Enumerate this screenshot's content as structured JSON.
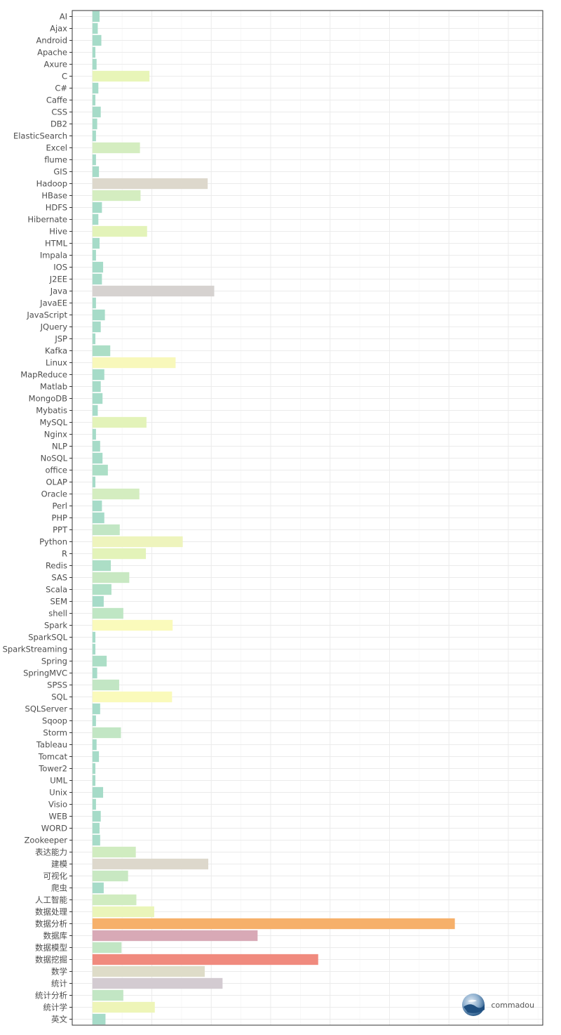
{
  "chart_data": {
    "type": "bar",
    "orientation": "horizontal",
    "title": "",
    "xlabel": "",
    "ylabel": "",
    "xlim": [
      -34,
      758
    ],
    "grid": true,
    "legend": "none",
    "categories": [
      "AI",
      "Ajax",
      "Android",
      "Apache",
      "Axure",
      "C",
      "C#",
      "Caffe",
      "CSS",
      "DB2",
      "ElasticSearch",
      "Excel",
      "flume",
      "GIS",
      "Hadoop",
      "HBase",
      "HDFS",
      "Hibernate",
      "Hive",
      "HTML",
      "Impala",
      "IOS",
      "J2EE",
      "Java",
      "JavaEE",
      "JavaScript",
      "JQuery",
      "JSP",
      "Kafka",
      "Linux",
      "MapReduce",
      "Matlab",
      "MongoDB",
      "Mybatis",
      "MySQL",
      "Nginx",
      "NLP",
      "NoSQL",
      "office",
      "OLAP",
      "Oracle",
      "Perl",
      "PHP",
      "PPT",
      "Python",
      "R",
      "Redis",
      "SAS",
      "Scala",
      "SEM",
      "shell",
      "Spark",
      "SparkSQL",
      "SparkStreaming",
      "Spring",
      "SpringMVC",
      "SPSS",
      "SQL",
      "SQLServer",
      "Sqoop",
      "Storm",
      "Tableau",
      "Tomcat",
      "Tower2",
      "UML",
      "Unix",
      "Visio",
      "WEB",
      "WORD",
      "Zookeeper",
      "表达能力",
      "建模",
      "可视化",
      "爬虫",
      "人工智能",
      "数据处理",
      "数据分析",
      "数据库",
      "数据模型",
      "数据挖掘",
      "数学",
      "统计",
      "统计分析",
      "统计学",
      "英文"
    ],
    "values": [
      12,
      9,
      15,
      5,
      7,
      96,
      10,
      5,
      14,
      8,
      6,
      80,
      6,
      11,
      194,
      81,
      16,
      10,
      92,
      12,
      6,
      18,
      16,
      205,
      6,
      21,
      14,
      5,
      30,
      140,
      20,
      14,
      17,
      9,
      91,
      6,
      13,
      17,
      26,
      5,
      79,
      16,
      20,
      46,
      152,
      90,
      31,
      62,
      32,
      19,
      52,
      135,
      5,
      5,
      24,
      8,
      45,
      134,
      13,
      6,
      48,
      7,
      11,
      5,
      5,
      18,
      6,
      14,
      12,
      13,
      73,
      195,
      60,
      19,
      74,
      104,
      610,
      278,
      49,
      380,
      189,
      219,
      52,
      105,
      22
    ],
    "colors": [
      "#a6dbc8",
      "#a6dbc8",
      "#a6dbc8",
      "#a6dbc8",
      "#a6dbc8",
      "#e8f5b8",
      "#a6dbc8",
      "#a6dbc8",
      "#a6dbc8",
      "#a6dbc8",
      "#a6dbc8",
      "#d4edc0",
      "#a6dbc8",
      "#a6dbc8",
      "#ddd8cc",
      "#d4edc0",
      "#a6dbc8",
      "#a6dbc8",
      "#e3f3b9",
      "#a6dbc8",
      "#a6dbc8",
      "#a6dbc8",
      "#a6dbc8",
      "#d6d2d0",
      "#a6dbc8",
      "#a6dbc8",
      "#a6dbc8",
      "#a6dbc8",
      "#acdec6",
      "#f8f8bb",
      "#a6dbc8",
      "#a6dbc8",
      "#a6dbc8",
      "#a6dbc8",
      "#e3f3b9",
      "#a6dbc8",
      "#a6dbc8",
      "#a6dbc8",
      "#acdec6",
      "#a6dbc8",
      "#d4edc0",
      "#a6dbc8",
      "#a6dbc8",
      "#c2e6c4",
      "#eef4bd",
      "#e3f3b9",
      "#acdec6",
      "#c8e8c2",
      "#b0e0c6",
      "#a6dbc8",
      "#bfe6c4",
      "#fafabb",
      "#a6dbc8",
      "#a6dbc8",
      "#acdec6",
      "#a6dbc8",
      "#c2e6c4",
      "#fafabb",
      "#a6dbc8",
      "#a6dbc8",
      "#c2e6c4",
      "#a6dbc8",
      "#a6dbc8",
      "#a6dbc8",
      "#a6dbc8",
      "#a6dbc8",
      "#a6dbc8",
      "#a6dbc8",
      "#a6dbc8",
      "#a6dbc8",
      "#d0ecc0",
      "#ddd8cc",
      "#c8e8c2",
      "#a6dbc8",
      "#d0ecc0",
      "#eaf5b9",
      "#f6b06a",
      "#d8a9b6",
      "#c2e6c4",
      "#f08a7e",
      "#dedcc8",
      "#d3cbd1",
      "#c2e6c4",
      "#eef5b8",
      "#a6dbc8"
    ]
  },
  "watermark": {
    "text": "commadou"
  }
}
